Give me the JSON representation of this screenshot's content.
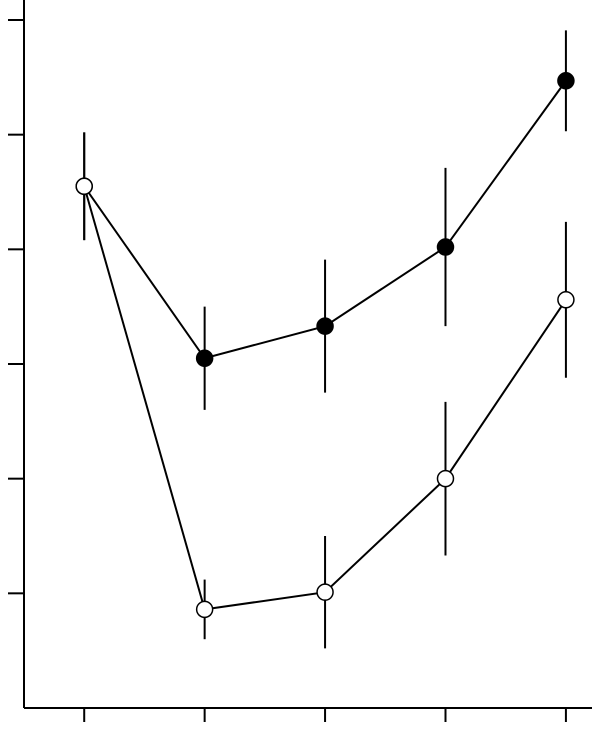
{
  "chart_data": {
    "type": "line",
    "x": [
      1,
      2,
      3,
      4,
      5
    ],
    "xlim": [
      0.5,
      5.2
    ],
    "xticks": [
      1,
      2,
      3,
      4,
      5
    ],
    "ylim": [
      0,
      6
    ],
    "yticks": [
      1,
      2,
      3,
      4,
      5,
      6
    ],
    "series": [
      {
        "color": "#000000",
        "values": [
          4.55,
          3.05,
          3.33,
          4.02,
          5.47
        ],
        "errors": [
          0.47,
          0.45,
          0.58,
          0.69,
          0.44
        ]
      },
      {
        "color": "#ffffff",
        "values": [
          4.55,
          0.86,
          1.01,
          2.0,
          3.56
        ],
        "errors": [
          0.47,
          0.26,
          0.49,
          0.67,
          0.68
        ]
      }
    ]
  }
}
